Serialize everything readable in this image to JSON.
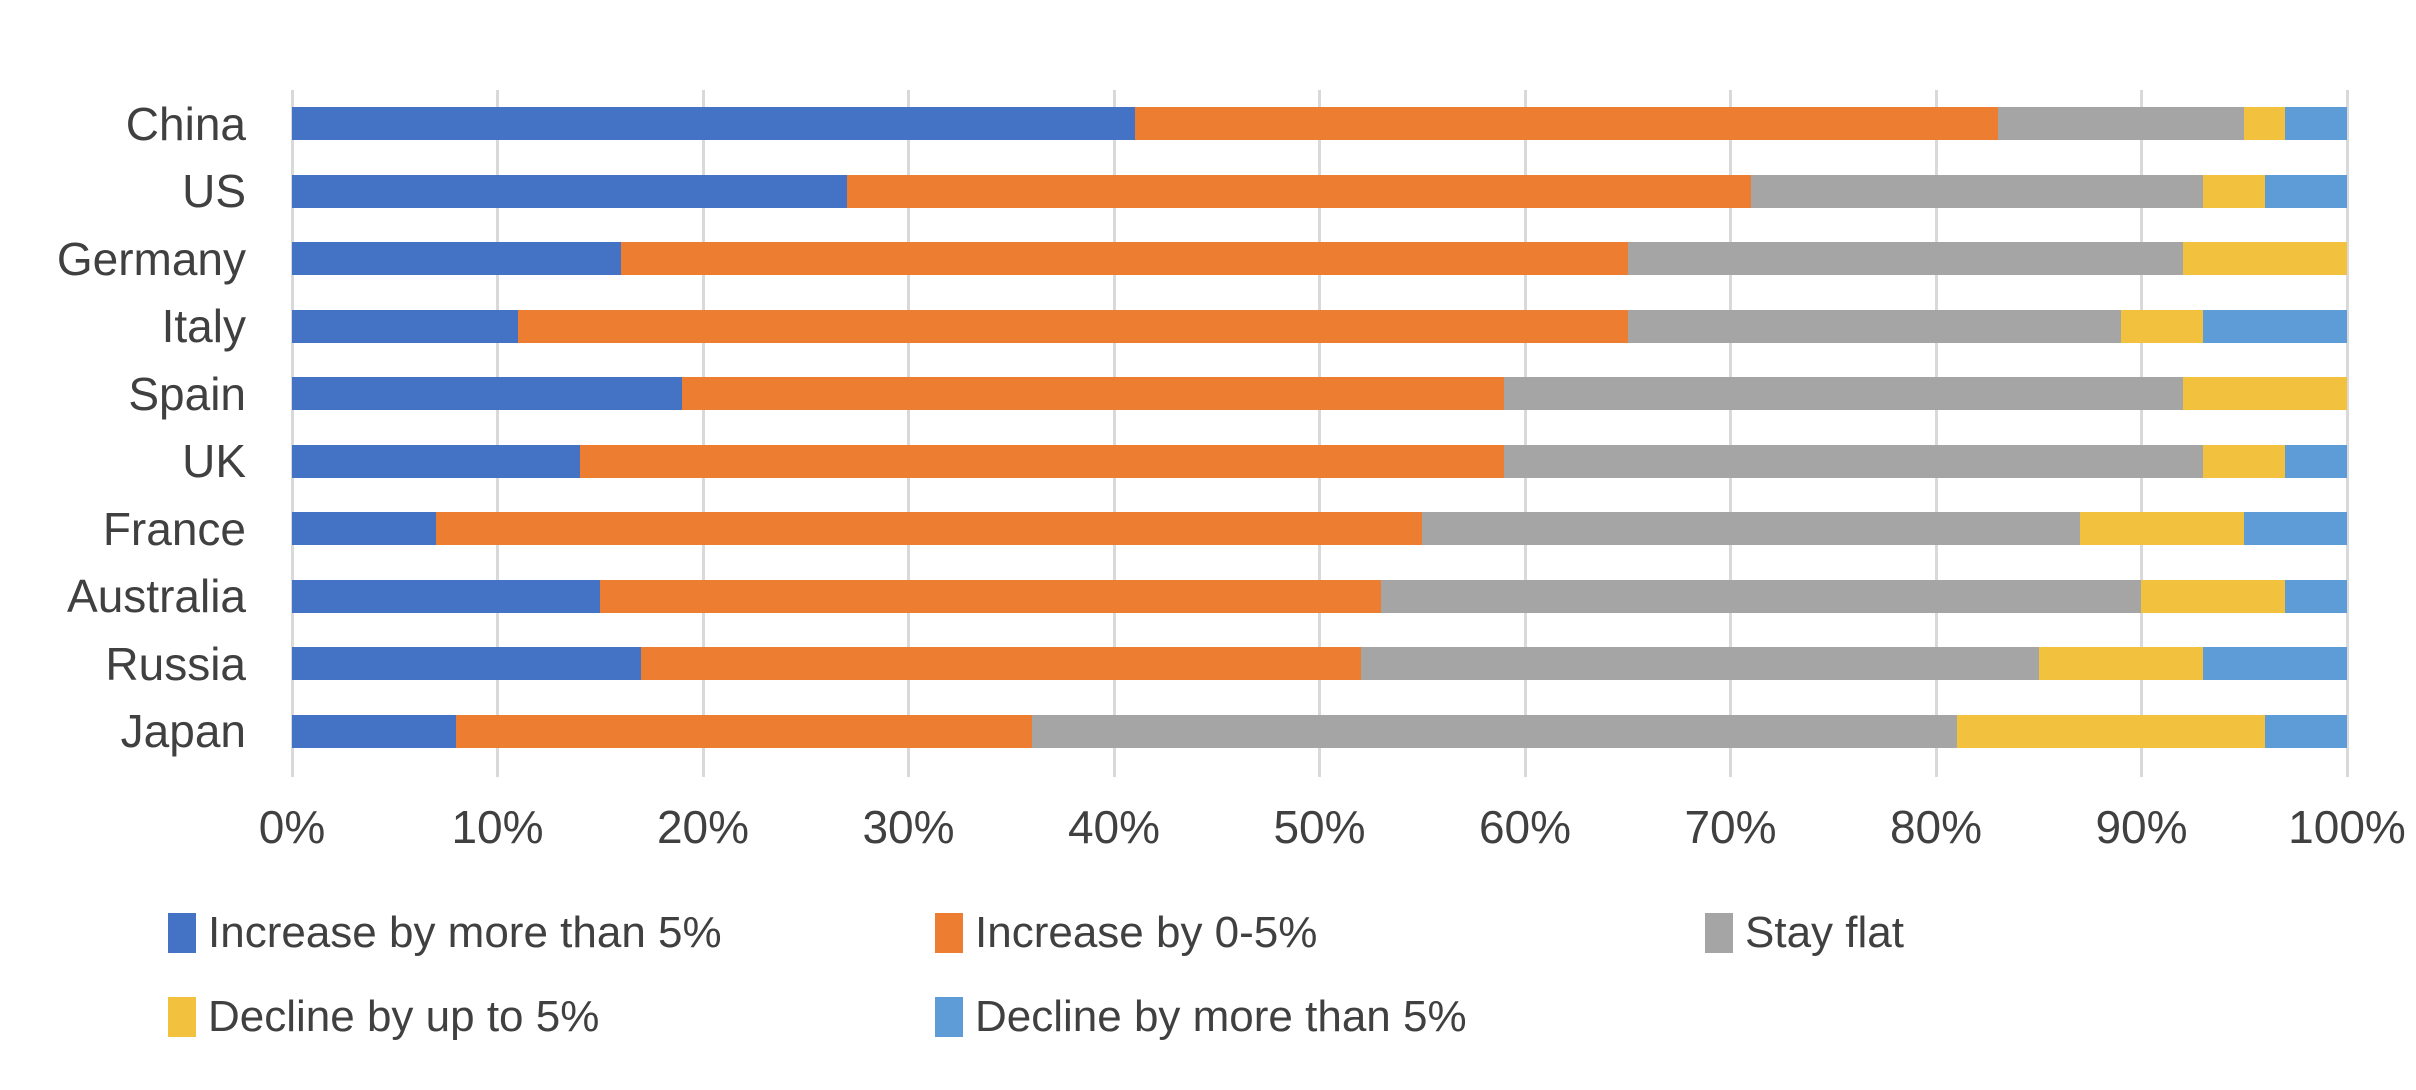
{
  "chart_data": {
    "type": "bar",
    "variant": "horizontal-stacked",
    "title": "",
    "xlabel": "",
    "ylabel": "",
    "xlim": [
      0,
      100
    ],
    "grid": "vertical",
    "grid_color": "#d9d9d9",
    "text_color": "#404040",
    "legend_position": "bottom",
    "x_ticks": [
      "0%",
      "10%",
      "20%",
      "30%",
      "40%",
      "50%",
      "60%",
      "70%",
      "80%",
      "90%",
      "100%"
    ],
    "categories": [
      "China",
      "US",
      "Germany",
      "Italy",
      "Spain",
      "UK",
      "France",
      "Australia",
      "Russia",
      "Japan"
    ],
    "series": [
      {
        "name": "Increase by more than 5%",
        "color": "#4472c4",
        "values": [
          41,
          27,
          16,
          11,
          19,
          14,
          7,
          15,
          17,
          8
        ]
      },
      {
        "name": "Increase by 0-5%",
        "color": "#ed7d31",
        "values": [
          42,
          44,
          49,
          54,
          40,
          45,
          48,
          38,
          35,
          28
        ]
      },
      {
        "name": "Stay flat",
        "color": "#a5a5a5",
        "values": [
          12,
          22,
          27,
          24,
          33,
          34,
          32,
          37,
          33,
          45
        ]
      },
      {
        "name": "Decline by up to 5%",
        "color": "#f2c13e",
        "values": [
          2,
          3,
          8,
          4,
          8,
          4,
          8,
          7,
          8,
          15
        ]
      },
      {
        "name": "Decline by more than 5%",
        "color": "#5e9cd8",
        "values": [
          3,
          4,
          0,
          7,
          0,
          3,
          5,
          3,
          7,
          4
        ]
      }
    ]
  },
  "layout_labels": {
    "chart_name": "expectation-by-country-stacked-bar"
  }
}
